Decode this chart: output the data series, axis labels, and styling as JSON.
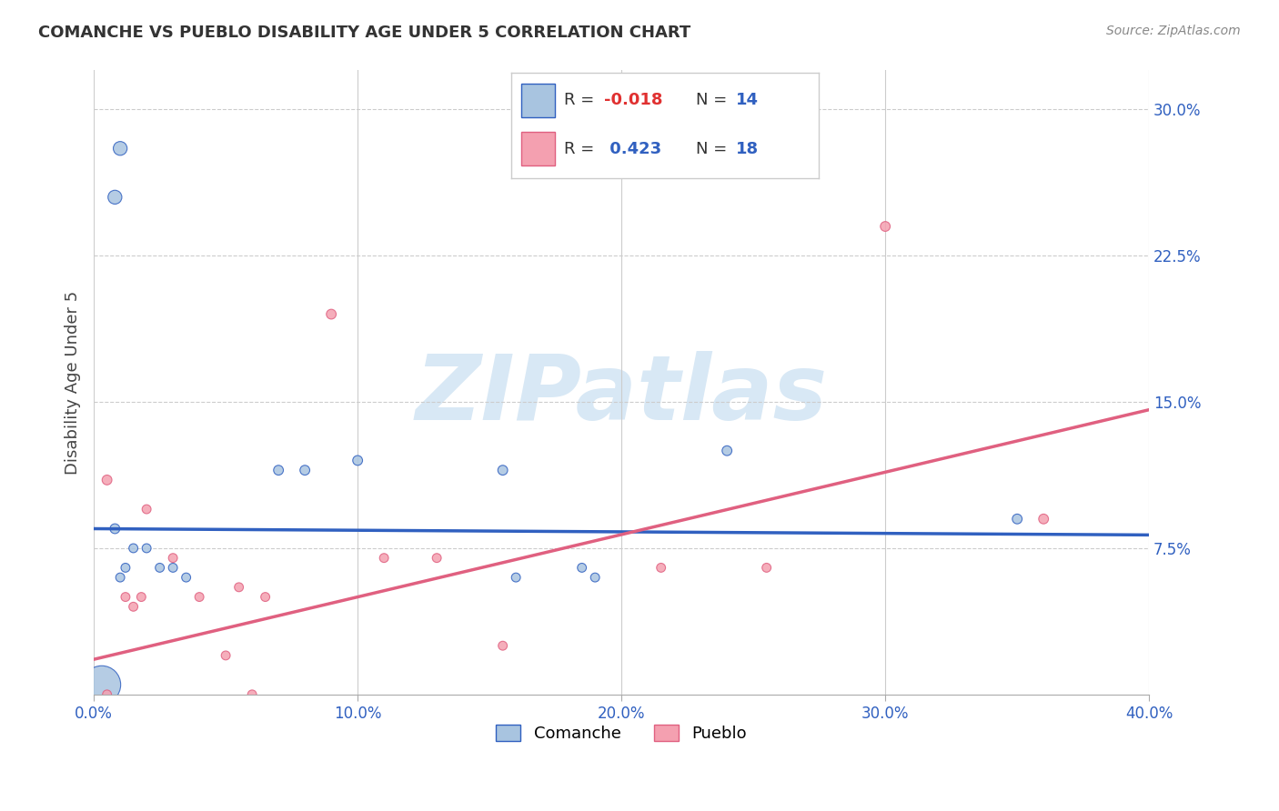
{
  "title": "COMANCHE VS PUEBLO DISABILITY AGE UNDER 5 CORRELATION CHART",
  "source": "Source: ZipAtlas.com",
  "ylabel": "Disability Age Under 5",
  "xlim": [
    0.0,
    0.4
  ],
  "ylim": [
    0.0,
    0.32
  ],
  "xticks": [
    0.0,
    0.1,
    0.2,
    0.3,
    0.4
  ],
  "xticklabels": [
    "0.0%",
    "10.0%",
    "20.0%",
    "30.0%",
    "40.0%"
  ],
  "yticks_right": [
    0.075,
    0.15,
    0.225,
    0.3
  ],
  "yticklabels_right": [
    "7.5%",
    "15.0%",
    "22.5%",
    "30.0%"
  ],
  "comanche_color": "#a8c4e0",
  "pueblo_color": "#f4a0b0",
  "comanche_line_color": "#3060c0",
  "pueblo_line_color": "#e06080",
  "watermark_color": "#d8e8f5",
  "background_color": "#ffffff",
  "comanche_intercept": 0.085,
  "comanche_slope": -0.008,
  "pueblo_intercept": 0.018,
  "pueblo_slope": 0.32,
  "comanche_points": [
    [
      0.01,
      0.28
    ],
    [
      0.008,
      0.255
    ],
    [
      0.008,
      0.085
    ],
    [
      0.012,
      0.065
    ],
    [
      0.01,
      0.06
    ],
    [
      0.015,
      0.075
    ],
    [
      0.02,
      0.075
    ],
    [
      0.025,
      0.065
    ],
    [
      0.03,
      0.065
    ],
    [
      0.035,
      0.06
    ],
    [
      0.07,
      0.115
    ],
    [
      0.08,
      0.115
    ],
    [
      0.1,
      0.12
    ],
    [
      0.155,
      0.115
    ],
    [
      0.16,
      0.06
    ],
    [
      0.185,
      0.065
    ],
    [
      0.19,
      0.06
    ],
    [
      0.24,
      0.125
    ],
    [
      0.35,
      0.09
    ],
    [
      0.003,
      0.005
    ]
  ],
  "pueblo_points": [
    [
      0.005,
      0.11
    ],
    [
      0.012,
      0.05
    ],
    [
      0.015,
      0.045
    ],
    [
      0.018,
      0.05
    ],
    [
      0.02,
      0.095
    ],
    [
      0.03,
      0.07
    ],
    [
      0.04,
      0.05
    ],
    [
      0.05,
      0.02
    ],
    [
      0.055,
      0.055
    ],
    [
      0.06,
      0.0
    ],
    [
      0.065,
      0.05
    ],
    [
      0.09,
      0.195
    ],
    [
      0.11,
      0.07
    ],
    [
      0.13,
      0.07
    ],
    [
      0.155,
      0.025
    ],
    [
      0.215,
      0.065
    ],
    [
      0.255,
      0.065
    ],
    [
      0.3,
      0.24
    ],
    [
      0.36,
      0.09
    ],
    [
      0.005,
      0.0
    ]
  ],
  "comanche_sizes": [
    120,
    120,
    60,
    50,
    50,
    50,
    50,
    50,
    50,
    50,
    60,
    60,
    60,
    60,
    50,
    50,
    50,
    60,
    60,
    900
  ],
  "pueblo_sizes": [
    60,
    50,
    50,
    50,
    50,
    50,
    50,
    50,
    50,
    50,
    50,
    60,
    50,
    50,
    50,
    50,
    50,
    60,
    60,
    50
  ]
}
